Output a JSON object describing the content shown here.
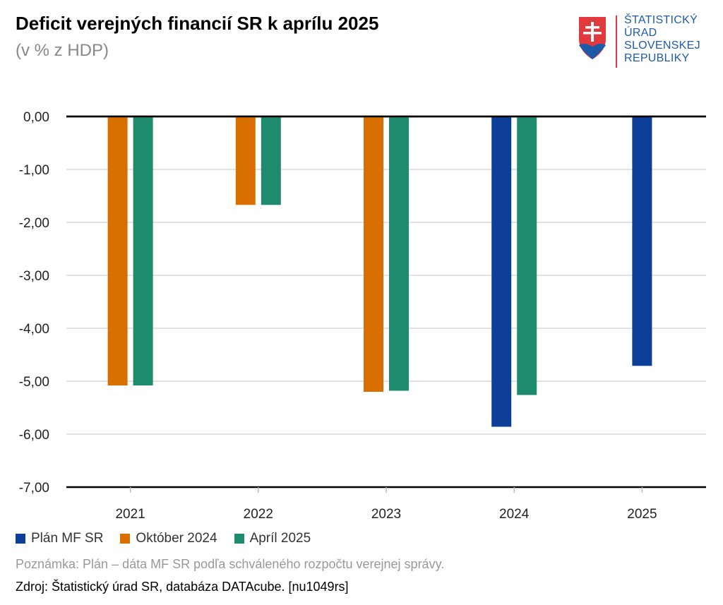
{
  "header": {
    "title": "Deficit verejných financií SR k aprílu 2025",
    "subtitle": "(v % z HDP)"
  },
  "logo": {
    "line1": "ŠTATISTICKÝ",
    "line2": "ÚRAD",
    "line3": "SLOVENSKEJ",
    "line4": "REPUBLIKY",
    "icon": "slovak-coat-of-arms-icon"
  },
  "colors": {
    "plan": "#0d3f99",
    "oktober": "#d86f00",
    "april": "#1e8a6e"
  },
  "chart_data": {
    "type": "bar",
    "categories": [
      "2021",
      "2022",
      "2023",
      "2024",
      "2025"
    ],
    "series": [
      {
        "name": "Plán MF SR",
        "color": "#0d3f99",
        "values": [
          null,
          null,
          null,
          -5.86,
          -4.71
        ]
      },
      {
        "name": "Október 2024",
        "color": "#d86f00",
        "values": [
          -5.08,
          -1.67,
          -5.2,
          null,
          null
        ]
      },
      {
        "name": "Apríl 2025",
        "color": "#1e8a6e",
        "values": [
          -5.08,
          -1.67,
          -5.18,
          -5.26,
          null
        ]
      }
    ],
    "yticks": [
      "0,00",
      "-1,00",
      "-2,00",
      "-3,00",
      "-4,00",
      "-5,00",
      "-6,00",
      "-7,00"
    ],
    "ylim": [
      -7,
      0
    ],
    "grid": true,
    "legend_position": "bottom-left"
  },
  "legend": [
    {
      "label": "Plán MF SR",
      "color": "#0d3f99"
    },
    {
      "label": "Október 2024",
      "color": "#d86f00"
    },
    {
      "label": "Apríl 2025",
      "color": "#1e8a6e"
    }
  ],
  "footer": {
    "note": "Poznámka: Plán – dáta MF SR podľa schváleného rozpočtu verejnej správy.",
    "source": "Zdroj: Štatistický úrad SR, databáza DATAcube. [nu1049rs]"
  }
}
